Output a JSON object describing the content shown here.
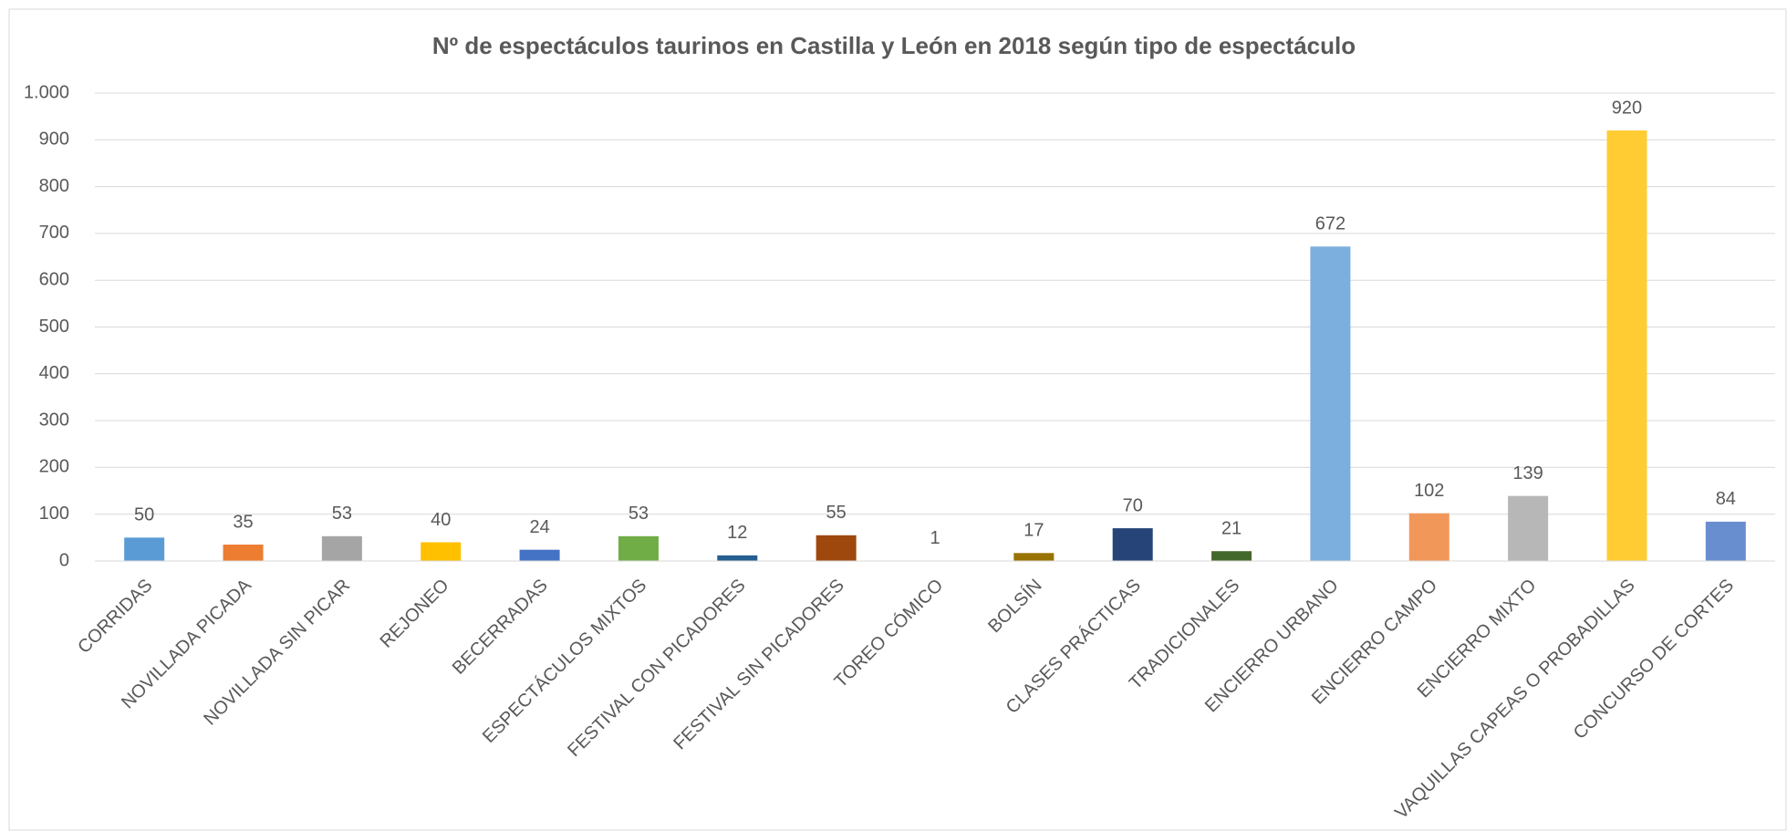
{
  "chart_data": {
    "type": "bar",
    "title": "Nº de espectáculos taurinos en Castilla y León  en 2018 según tipo de espectáculo",
    "categories": [
      "CORRIDAS",
      "NOVILLADA PICADA",
      "NOVILLADA SIN PICAR",
      "REJONEO",
      "BECERRADAS",
      "ESPECTÁCULOS MIXTOS",
      "FESTIVAL CON PICADORES",
      "FESTIVAL SIN PICADORES",
      "TOREO CÓMICO",
      "BOLSÍN",
      "CLASES PRÁCTICAS",
      "TRADICIONALES",
      "ENCIERRO URBANO",
      "ENCIERRO CAMPO",
      "ENCIERRO MIXTO",
      "VAQUILLAS CAPEAS O PROBADILLAS",
      "CONCURSO DE CORTES"
    ],
    "values": [
      50,
      35,
      53,
      40,
      24,
      53,
      12,
      55,
      1,
      17,
      70,
      21,
      672,
      102,
      139,
      920,
      84
    ],
    "colors": [
      "#5b9bd5",
      "#ed7d31",
      "#a5a5a5",
      "#ffc000",
      "#4472c4",
      "#70ad47",
      "#255e91",
      "#9e480e",
      "#636363",
      "#997300",
      "#264478",
      "#43682b",
      "#7cafdd",
      "#f1975a",
      "#b7b7b7",
      "#ffcd33",
      "#698ed0"
    ],
    "ylim": [
      0,
      1000
    ],
    "yticks": [
      0,
      100,
      200,
      300,
      400,
      500,
      600,
      700,
      800,
      900,
      {
        "value": 1000,
        "label": "1.000"
      }
    ],
    "grid": true
  }
}
